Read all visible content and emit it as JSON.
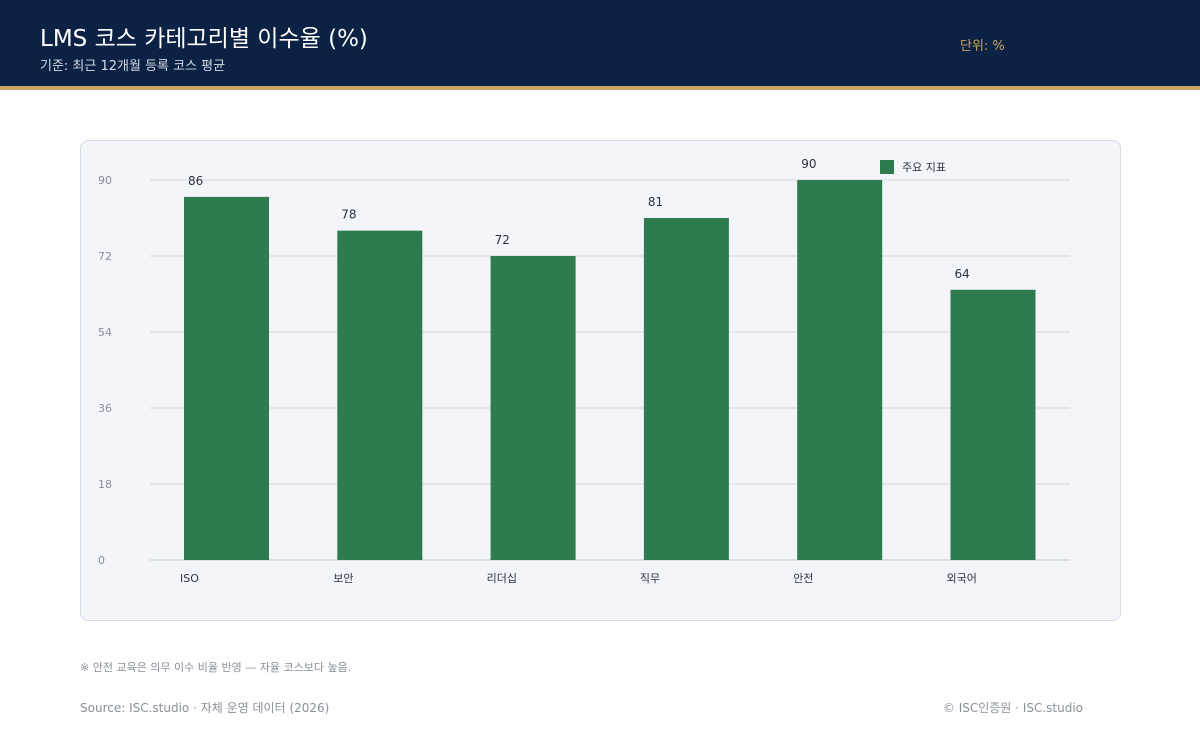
{
  "header": {
    "title": "LMS 코스 카테고리별 이수율 (%)",
    "subtitle": "기준: 최근 12개월 등록 코스 평균",
    "unit": "단위: %"
  },
  "colors": {
    "header_bg": "#0c2244",
    "accent": "#c8a565",
    "bar": "#2e7b4f",
    "panel_bg": "#f4f5fa"
  },
  "chart_data": {
    "type": "bar",
    "categories": [
      "ISO",
      "보안",
      "리더십",
      "직무",
      "안전",
      "외국어"
    ],
    "series": [
      {
        "name": "주요 지표",
        "values": [
          86,
          78,
          72,
          81,
          90,
          64
        ]
      }
    ],
    "ylim": [
      0,
      90
    ],
    "yticks": [
      0,
      18,
      36,
      54,
      72,
      90
    ],
    "grid": true,
    "legend": "top-right",
    "data_labels": true
  },
  "footer": {
    "note": "※ 안전 교육은 의무 이수 비율 반영 — 자율 코스보다 높음.",
    "source": "Source: ISC.studio · 자체 운영 데이터 (2026)",
    "copyright": "© ISC인증원 · ISC.studio"
  }
}
